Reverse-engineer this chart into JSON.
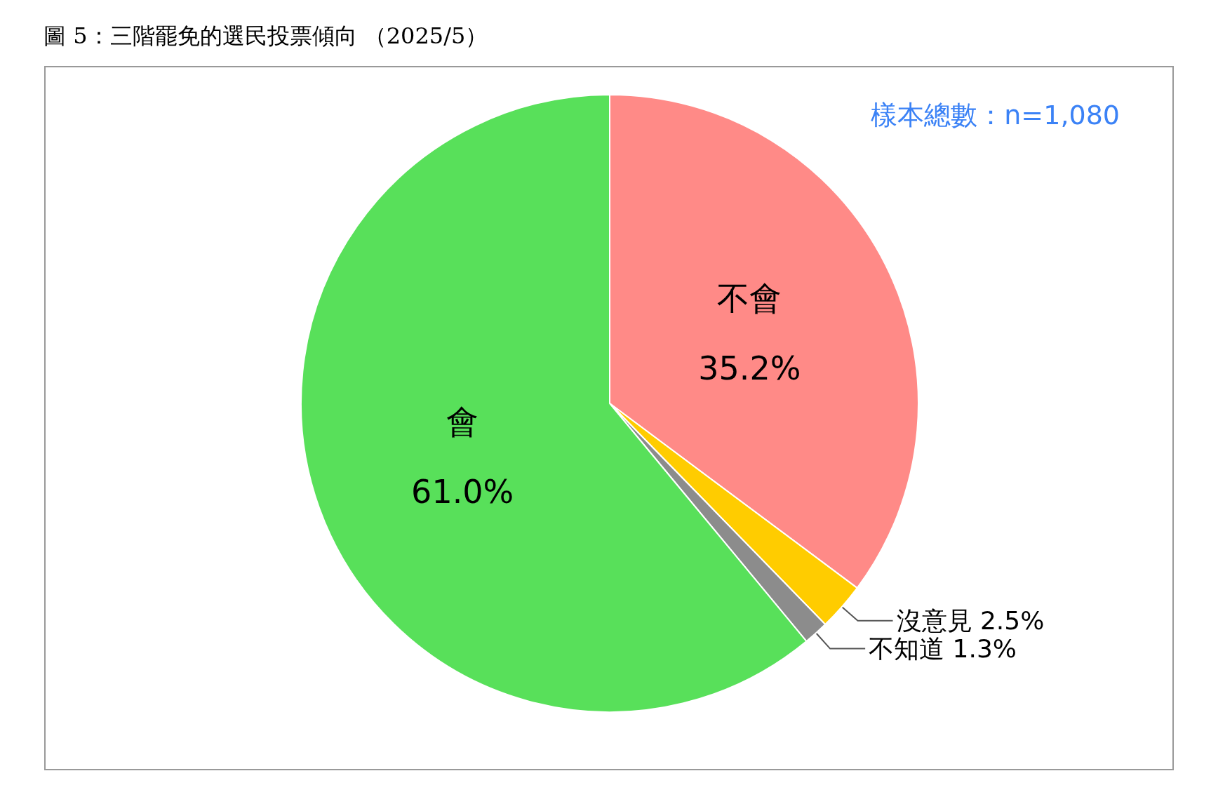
{
  "chart_data": {
    "type": "pie",
    "title": "圖 5：三階罷免的選民投票傾向 （2025/5）",
    "annotations": [
      "樣本總數：n=1,080"
    ],
    "categories": [
      "不會",
      "沒意見",
      "不知道",
      "會"
    ],
    "values": [
      35.2,
      2.5,
      1.3,
      61.0
    ],
    "colors": [
      "#ff8a87",
      "#ffcc00",
      "#8c8c8c",
      "#58e05a"
    ],
    "value_labels": [
      "35.2%",
      "2.5%",
      "1.3%",
      "61.0%"
    ]
  }
}
